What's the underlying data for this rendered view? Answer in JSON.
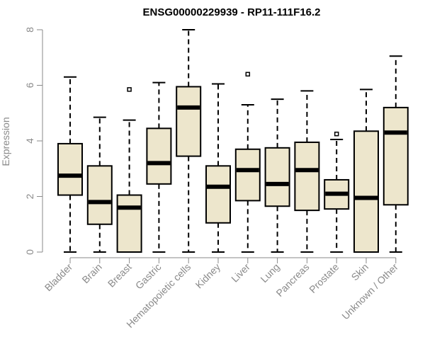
{
  "chart_data": {
    "type": "boxplot",
    "title": "ENSG00000229939 - RP11-111F16.2",
    "xlabel": "",
    "ylabel": "Expression",
    "ylim": [
      0,
      8
    ],
    "yticks": [
      0,
      2,
      4,
      6,
      8
    ],
    "grid": false,
    "box_fill": "#ede6cc",
    "categories": [
      "Bladder",
      "Brain",
      "Breast",
      "Gastric",
      "Hematopoietic cells",
      "Kidney",
      "Liver",
      "Lung",
      "Pancreas",
      "Prostate",
      "Skin",
      "Unknown / Other"
    ],
    "boxes": [
      {
        "min": 0,
        "q1": 2.05,
        "median": 2.75,
        "q3": 3.9,
        "max": 6.3,
        "outliers": []
      },
      {
        "min": 0,
        "q1": 1.0,
        "median": 1.8,
        "q3": 3.1,
        "max": 4.85,
        "outliers": []
      },
      {
        "min": 0,
        "q1": 0,
        "median": 1.6,
        "q3": 2.05,
        "max": 4.75,
        "outliers": [
          5.85
        ]
      },
      {
        "min": 0,
        "q1": 2.45,
        "median": 3.2,
        "q3": 4.45,
        "max": 6.1,
        "outliers": []
      },
      {
        "min": 0,
        "q1": 3.45,
        "median": 5.2,
        "q3": 5.95,
        "max": 8.0,
        "outliers": []
      },
      {
        "min": 0,
        "q1": 1.05,
        "median": 2.35,
        "q3": 3.1,
        "max": 6.05,
        "outliers": []
      },
      {
        "min": 0,
        "q1": 1.85,
        "median": 2.95,
        "q3": 3.7,
        "max": 5.3,
        "outliers": [
          6.4
        ]
      },
      {
        "min": 0,
        "q1": 1.65,
        "median": 2.45,
        "q3": 3.75,
        "max": 5.5,
        "outliers": []
      },
      {
        "min": 0,
        "q1": 1.5,
        "median": 2.95,
        "q3": 3.95,
        "max": 5.8,
        "outliers": []
      },
      {
        "min": 0,
        "q1": 1.55,
        "median": 2.1,
        "q3": 2.6,
        "max": 4.05,
        "outliers": [
          4.25
        ]
      },
      {
        "min": 0,
        "q1": 0,
        "median": 1.95,
        "q3": 4.35,
        "max": 5.85,
        "outliers": []
      },
      {
        "min": 0,
        "q1": 1.7,
        "median": 4.3,
        "q3": 5.2,
        "max": 7.05,
        "outliers": []
      }
    ]
  }
}
